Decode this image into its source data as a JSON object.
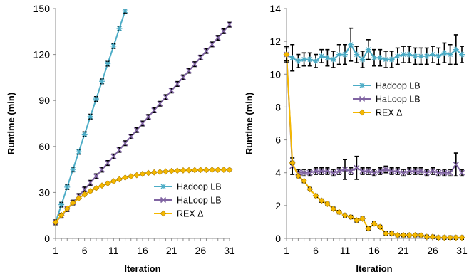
{
  "chart_data": [
    {
      "type": "line",
      "xlabel": "Iteration",
      "ylabel": "Runtime (min)",
      "xlim": [
        1,
        31
      ],
      "ylim": [
        0,
        150
      ],
      "x_ticks": [
        "1",
        "6",
        "11",
        "16",
        "21",
        "26",
        "31"
      ],
      "y_ticks": [
        "0",
        "30",
        "60",
        "90",
        "120",
        "150"
      ],
      "error_bars": true,
      "legend_position": "bottom-right",
      "series": [
        {
          "name": "Hadoop LB",
          "color": "#4bacc6",
          "marker": "star",
          "x": [
            1,
            2,
            3,
            4,
            5,
            6,
            7,
            8,
            9,
            10,
            11,
            12,
            13
          ],
          "y": [
            10.5,
            22,
            33.5,
            45,
            56.5,
            68,
            79.5,
            91,
            102.5,
            114,
            125.5,
            137,
            148.5
          ],
          "err": [
            1.5,
            1.5,
            1.5,
            1.5,
            1.5,
            1.5,
            1.5,
            1.5,
            1.5,
            1.5,
            1.5,
            1.5,
            1.5
          ]
        },
        {
          "name": "HaLoop LB",
          "color": "#8064a2",
          "marker": "x",
          "x": [
            1,
            2,
            3,
            4,
            5,
            6,
            7,
            8,
            9,
            10,
            11,
            12,
            13,
            14,
            15,
            16,
            17,
            18,
            19,
            20,
            21,
            22,
            23,
            24,
            25,
            26,
            27,
            28,
            29,
            30,
            31
          ],
          "y": [
            10.5,
            14.8,
            19.1,
            23.4,
            27.7,
            32,
            36.3,
            40.6,
            44.9,
            49.2,
            53.5,
            57.8,
            62.1,
            66.4,
            70.7,
            75,
            79.3,
            83.6,
            87.9,
            92.2,
            96.5,
            100.8,
            105.1,
            109.4,
            113.7,
            118,
            122.3,
            126.6,
            130.9,
            135.2,
            139.5
          ],
          "err": [
            1.5,
            1.5,
            1.5,
            1.5,
            1.5,
            1.5,
            1.5,
            1.5,
            1.5,
            1.5,
            1.5,
            1.5,
            1.5,
            1.5,
            1.5,
            1.5,
            1.5,
            1.5,
            1.5,
            1.5,
            1.5,
            1.5,
            1.5,
            1.5,
            1.5,
            1.5,
            1.5,
            1.5,
            1.5,
            1.5,
            1.5
          ]
        },
        {
          "name": "REX Δ",
          "color": "#f5b800",
          "marker": "diamond",
          "x": [
            1,
            2,
            3,
            4,
            5,
            6,
            7,
            8,
            9,
            10,
            11,
            12,
            13,
            14,
            15,
            16,
            17,
            18,
            19,
            20,
            21,
            22,
            23,
            24,
            25,
            26,
            27,
            28,
            29,
            30,
            31
          ],
          "y": [
            10.5,
            15.2,
            19.4,
            23.2,
            26.2,
            28.7,
            30.8,
            32.8,
            34.5,
            35.9,
            37.3,
            38.6,
            39.7,
            40.5,
            41.3,
            42.1,
            42.7,
            43.1,
            43.4,
            43.7,
            44,
            44.2,
            44.4,
            44.5,
            44.6,
            44.7,
            44.7,
            44.8,
            44.8,
            44.8,
            44.8
          ],
          "err": [
            0.5,
            0.5,
            0.5,
            0.5,
            0.5,
            0.5,
            0.5,
            0.5,
            0.5,
            0.5,
            0.5,
            0.5,
            0.5,
            0.5,
            0.5,
            0.5,
            0.5,
            0.5,
            0.5,
            0.5,
            0.5,
            0.5,
            0.5,
            0.5,
            0.5,
            0.5,
            0.5,
            0.5,
            0.5,
            0.5,
            0.5
          ]
        }
      ]
    },
    {
      "type": "line",
      "xlabel": "Iteration",
      "ylabel": "Runtime (min)",
      "xlim": [
        1,
        31
      ],
      "ylim": [
        0,
        14
      ],
      "x_ticks": [
        "1",
        "6",
        "11",
        "16",
        "21",
        "26",
        "31"
      ],
      "y_ticks": [
        "0",
        "2",
        "4",
        "6",
        "8",
        "10",
        "12",
        "14"
      ],
      "error_bars": true,
      "legend_position": "middle-left",
      "series": [
        {
          "name": "Hadoop LB",
          "color": "#4bacc6",
          "marker": "star",
          "x": [
            1,
            2,
            3,
            4,
            5,
            6,
            7,
            8,
            9,
            10,
            11,
            12,
            13,
            14,
            15,
            16,
            17,
            18,
            19,
            20,
            21,
            22,
            23,
            24,
            25,
            26,
            27,
            28,
            29,
            30,
            31
          ],
          "y": [
            11.2,
            11,
            10.8,
            10.9,
            10.9,
            10.8,
            11.1,
            11,
            10.9,
            11.2,
            11.2,
            11.8,
            11.2,
            10.9,
            11.5,
            11,
            11,
            10.9,
            10.9,
            11.1,
            11.2,
            11.2,
            11.1,
            11.1,
            11.1,
            11.2,
            11.1,
            11.3,
            11.2,
            11.5,
            11.2
          ],
          "err": [
            0.5,
            0.8,
            0.4,
            0.4,
            0.4,
            0.4,
            0.4,
            0.5,
            0.5,
            0.6,
            0.6,
            1,
            0.5,
            0.5,
            0.6,
            0.5,
            0.5,
            0.5,
            0.5,
            0.5,
            0.5,
            0.5,
            0.5,
            0.5,
            0.5,
            0.5,
            0.5,
            0.6,
            0.6,
            0.9,
            0.5
          ]
        },
        {
          "name": "HaLoop LB",
          "color": "#8064a2",
          "marker": "x",
          "x": [
            1,
            2,
            3,
            4,
            5,
            6,
            7,
            8,
            9,
            10,
            11,
            12,
            13,
            14,
            15,
            16,
            17,
            18,
            19,
            20,
            21,
            22,
            23,
            24,
            25,
            26,
            27,
            28,
            29,
            30,
            31
          ],
          "y": [
            11.2,
            4.4,
            4,
            4,
            4,
            4.1,
            4.1,
            4.1,
            4,
            4.1,
            4.2,
            4.1,
            4.3,
            4.1,
            4.1,
            4,
            4.1,
            4.2,
            4.1,
            4.1,
            4,
            4.1,
            4.1,
            4.1,
            4,
            4.1,
            4,
            4,
            4,
            4.5,
            4
          ],
          "err": [
            0.4,
            0.5,
            0.2,
            0.2,
            0.2,
            0.2,
            0.2,
            0.2,
            0.2,
            0.2,
            0.6,
            0.2,
            0.7,
            0.2,
            0.2,
            0.2,
            0.2,
            0.2,
            0.2,
            0.2,
            0.2,
            0.2,
            0.2,
            0.2,
            0.2,
            0.2,
            0.2,
            0.2,
            0.2,
            0.7,
            0.2
          ]
        },
        {
          "name": "REX Δ",
          "color": "#f5b800",
          "marker": "diamond",
          "x": [
            1,
            2,
            3,
            4,
            5,
            6,
            7,
            8,
            9,
            10,
            11,
            12,
            13,
            14,
            15,
            16,
            17,
            18,
            19,
            20,
            21,
            22,
            23,
            24,
            25,
            26,
            27,
            28,
            29,
            30,
            31
          ],
          "y": [
            11.2,
            4.6,
            3.8,
            3.5,
            3,
            2.6,
            2.3,
            2.1,
            1.8,
            1.6,
            1.4,
            1.3,
            1.1,
            1.2,
            0.6,
            0.9,
            0.7,
            0.3,
            0.3,
            0.2,
            0.2,
            0.2,
            0.2,
            0.2,
            0.1,
            0.1,
            0.05,
            0.05,
            0.05,
            0.05,
            0.05
          ],
          "err": [
            0.5,
            0.1,
            0.1,
            0.1,
            0.1,
            0.1,
            0.1,
            0.1,
            0.1,
            0.1,
            0.1,
            0.1,
            0.1,
            0.1,
            0.1,
            0.1,
            0.1,
            0.1,
            0.1,
            0.1,
            0.1,
            0.1,
            0.1,
            0.1,
            0.1,
            0.1,
            0.1,
            0.1,
            0.1,
            0.1,
            0.1
          ]
        }
      ]
    }
  ]
}
